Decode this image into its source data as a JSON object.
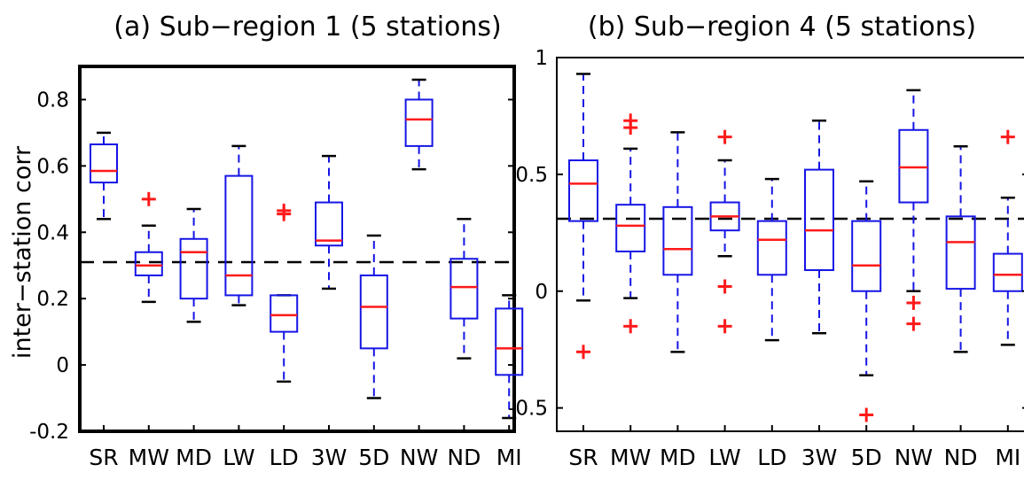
{
  "chart_data": [
    {
      "type": "box",
      "title": "(a)    Sub−region 1 (5 stations)",
      "ylabel": "inter−station corr",
      "xlabel": "",
      "ylim": [
        -0.2,
        0.9
      ],
      "yticks": [
        -0.2,
        0,
        0.2,
        0.4,
        0.6,
        0.8
      ],
      "ytick_labels": [
        "-0.2",
        "0",
        "0.2",
        "0.4",
        "0.6",
        "0.8"
      ],
      "reference_line": 0.31,
      "categories": [
        "SR",
        "MW",
        "MD",
        "LW",
        "LD",
        "3W",
        "5D",
        "NW",
        "ND",
        "MI"
      ],
      "boxes": [
        {
          "category": "SR",
          "whisker_low": 0.44,
          "q1": 0.55,
          "median": 0.585,
          "q3": 0.665,
          "whisker_high": 0.7,
          "outliers": []
        },
        {
          "category": "MW",
          "whisker_low": 0.19,
          "q1": 0.27,
          "median": 0.3,
          "q3": 0.34,
          "whisker_high": 0.42,
          "outliers": [
            0.5
          ]
        },
        {
          "category": "MD",
          "whisker_low": 0.13,
          "q1": 0.2,
          "median": 0.34,
          "q3": 0.38,
          "whisker_high": 0.47,
          "outliers": []
        },
        {
          "category": "LW",
          "whisker_low": 0.18,
          "q1": 0.21,
          "median": 0.27,
          "q3": 0.57,
          "whisker_high": 0.66,
          "outliers": []
        },
        {
          "category": "LD",
          "whisker_low": -0.05,
          "q1": 0.1,
          "median": 0.15,
          "q3": 0.21,
          "whisker_high": 0.21,
          "outliers": [
            0.455,
            0.465
          ]
        },
        {
          "category": "3W",
          "whisker_low": 0.23,
          "q1": 0.36,
          "median": 0.375,
          "q3": 0.49,
          "whisker_high": 0.63,
          "outliers": []
        },
        {
          "category": "5D",
          "whisker_low": -0.1,
          "q1": 0.05,
          "median": 0.175,
          "q3": 0.27,
          "whisker_high": 0.39,
          "outliers": []
        },
        {
          "category": "NW",
          "whisker_low": 0.59,
          "q1": 0.66,
          "median": 0.74,
          "q3": 0.8,
          "whisker_high": 0.86,
          "outliers": []
        },
        {
          "category": "ND",
          "whisker_low": 0.02,
          "q1": 0.14,
          "median": 0.235,
          "q3": 0.32,
          "whisker_high": 0.44,
          "outliers": []
        },
        {
          "category": "MI",
          "whisker_low": -0.16,
          "q1": -0.03,
          "median": 0.05,
          "q3": 0.17,
          "whisker_high": 0.21,
          "outliers": []
        }
      ]
    },
    {
      "type": "box",
      "title": "(b)    Sub−region 4 (5 stations)",
      "ylabel": "",
      "xlabel": "",
      "ylim": [
        -0.6,
        1.0
      ],
      "yticks": [
        -0.5,
        0,
        0.5,
        1.0
      ],
      "ytick_labels": [
        "-0.5",
        "0",
        "0.5",
        "1"
      ],
      "reference_line": 0.31,
      "categories": [
        "SR",
        "MW",
        "MD",
        "LW",
        "LD",
        "3W",
        "5D",
        "NW",
        "ND",
        "MI"
      ],
      "boxes": [
        {
          "category": "SR",
          "whisker_low": -0.04,
          "q1": 0.3,
          "median": 0.46,
          "q3": 0.56,
          "whisker_high": 0.93,
          "outliers": [
            -0.26
          ]
        },
        {
          "category": "MW",
          "whisker_low": -0.03,
          "q1": 0.17,
          "median": 0.28,
          "q3": 0.37,
          "whisker_high": 0.61,
          "outliers": [
            -0.15,
            0.7,
            0.73
          ]
        },
        {
          "category": "MD",
          "whisker_low": -0.26,
          "q1": 0.07,
          "median": 0.18,
          "q3": 0.36,
          "whisker_high": 0.68,
          "outliers": []
        },
        {
          "category": "LW",
          "whisker_low": 0.15,
          "q1": 0.26,
          "median": 0.32,
          "q3": 0.38,
          "whisker_high": 0.56,
          "outliers": [
            -0.15,
            0.02,
            0.66
          ]
        },
        {
          "category": "LD",
          "whisker_low": -0.21,
          "q1": 0.07,
          "median": 0.22,
          "q3": 0.3,
          "whisker_high": 0.48,
          "outliers": []
        },
        {
          "category": "3W",
          "whisker_low": -0.18,
          "q1": 0.09,
          "median": 0.26,
          "q3": 0.52,
          "whisker_high": 0.73,
          "outliers": []
        },
        {
          "category": "5D",
          "whisker_low": -0.36,
          "q1": 0.0,
          "median": 0.11,
          "q3": 0.3,
          "whisker_high": 0.47,
          "outliers": [
            -0.53
          ]
        },
        {
          "category": "NW",
          "whisker_low": 0.0,
          "q1": 0.38,
          "median": 0.53,
          "q3": 0.69,
          "whisker_high": 0.86,
          "outliers": [
            -0.05,
            -0.14
          ]
        },
        {
          "category": "ND",
          "whisker_low": -0.26,
          "q1": 0.01,
          "median": 0.21,
          "q3": 0.32,
          "whisker_high": 0.62,
          "outliers": []
        },
        {
          "category": "MI",
          "whisker_low": -0.23,
          "q1": 0.0,
          "median": 0.07,
          "q3": 0.16,
          "whisker_high": 0.4,
          "outliers": [
            0.66
          ]
        }
      ]
    }
  ]
}
